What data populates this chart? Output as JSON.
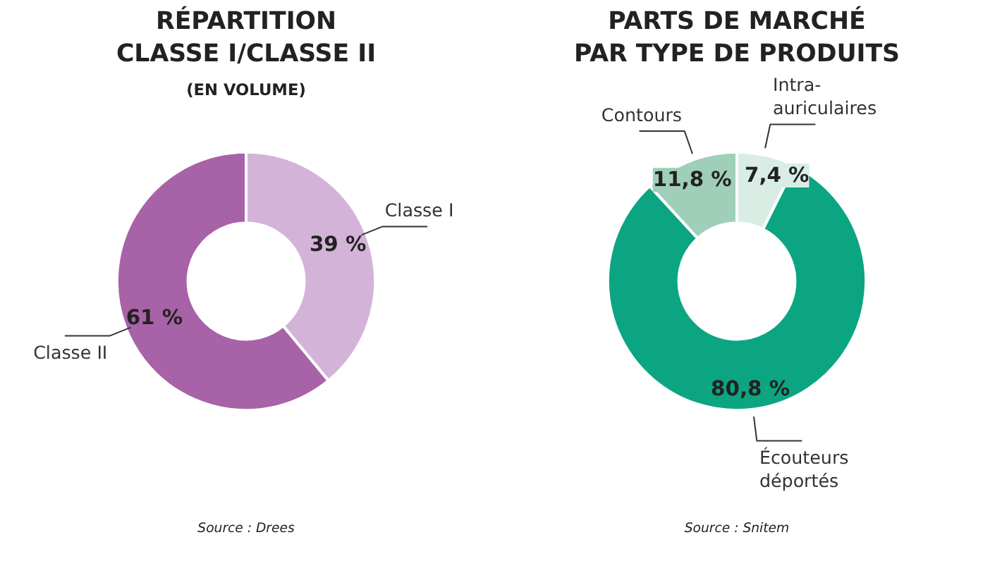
{
  "chart_data": [
    {
      "type": "donut",
      "title": "RÉPARTITION\nCLASSE I/CLASSE II",
      "subtitle": "(EN VOLUME)",
      "categories": [
        "Classe I",
        "Classe II"
      ],
      "values": [
        39,
        61
      ],
      "colors": [
        "#d4b3d9",
        "#a862a8"
      ],
      "value_labels": [
        "39 %",
        "61 %"
      ],
      "annotations": [
        "Source : Drees"
      ]
    },
    {
      "type": "donut",
      "title": "PARTS DE MARCHÉ\nPAR TYPE DE PRODUITS",
      "categories": [
        "Intra-\nauriculaires",
        "Écouteurs\ndéportés",
        "Contours"
      ],
      "values": [
        7.4,
        80.8,
        11.8
      ],
      "colors": [
        "#d9ede4",
        "#0ca582",
        "#9fcfb9"
      ],
      "value_labels": [
        "7,4 %",
        "80,8 %",
        "11,8 %"
      ],
      "annotations": [
        "Source : Snitem"
      ]
    }
  ]
}
